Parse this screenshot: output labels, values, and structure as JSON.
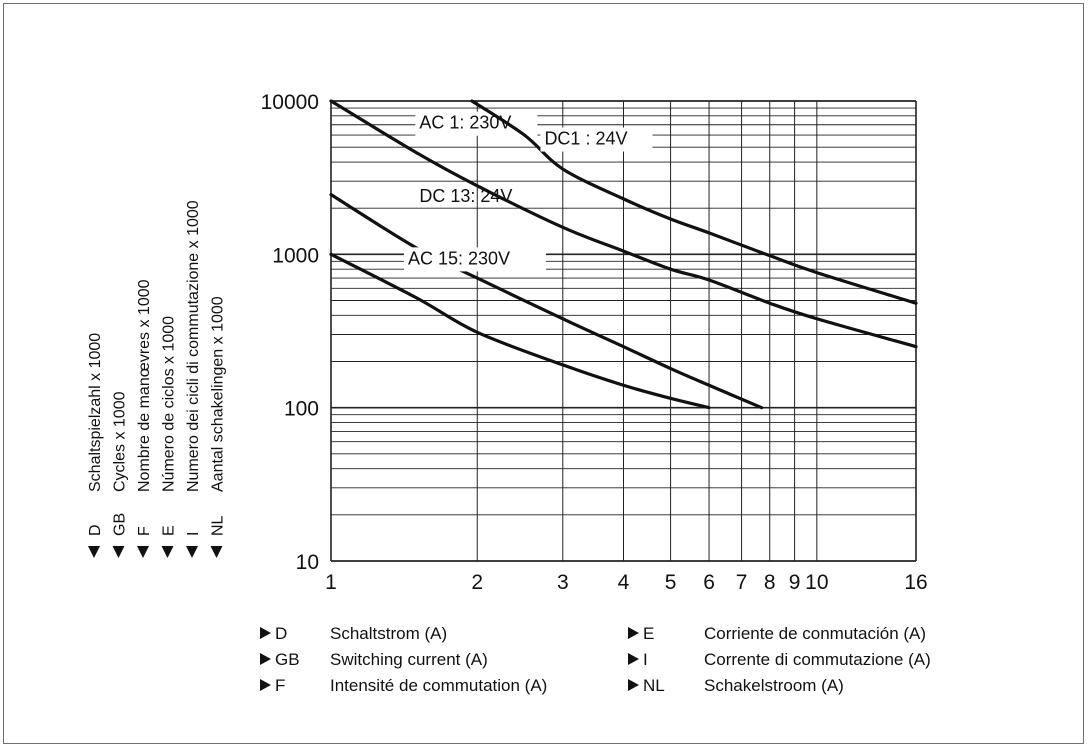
{
  "chart_data": {
    "type": "line",
    "x_scale": "log",
    "y_scale": "log",
    "xlim": [
      1,
      16
    ],
    "ylim": [
      10,
      10000
    ],
    "x_ticks": [
      "1",
      "2",
      "3",
      "4",
      "5",
      "6",
      "7",
      "8",
      "9",
      "10",
      "16"
    ],
    "y_ticks": [
      "10",
      "100",
      "1000",
      "10000"
    ],
    "grid": true,
    "series": [
      {
        "name": "AC 1: 230V",
        "points": [
          [
            1,
            10000
          ],
          [
            1.5,
            4600
          ],
          [
            2,
            2800
          ],
          [
            3,
            1500
          ],
          [
            4,
            1050
          ],
          [
            5,
            800
          ],
          [
            6,
            680
          ],
          [
            8,
            480
          ],
          [
            10,
            380
          ],
          [
            16,
            250
          ]
        ]
      },
      {
        "name": "DC1 : 24V",
        "points": [
          [
            1.95,
            10000
          ],
          [
            2.5,
            6000
          ],
          [
            3,
            3600
          ],
          [
            4,
            2300
          ],
          [
            5,
            1700
          ],
          [
            6,
            1380
          ],
          [
            8,
            980
          ],
          [
            10,
            760
          ],
          [
            16,
            480
          ]
        ]
      },
      {
        "name": "DC 13: 24V",
        "points": [
          [
            1,
            2450
          ],
          [
            1.5,
            1100
          ],
          [
            2,
            700
          ],
          [
            3,
            380
          ],
          [
            4,
            250
          ],
          [
            5,
            180
          ],
          [
            6,
            140
          ],
          [
            7.7,
            100
          ]
        ]
      },
      {
        "name": "AC 15: 230V",
        "points": [
          [
            1,
            1000
          ],
          [
            1.5,
            520
          ],
          [
            2,
            310
          ],
          [
            3,
            190
          ],
          [
            4,
            140
          ],
          [
            5,
            115
          ],
          [
            6,
            100
          ]
        ]
      }
    ],
    "y_axis_labels": [
      {
        "code": "D",
        "text": "Schaltspielzahl x 1000"
      },
      {
        "code": "GB",
        "text": "Cycles x 1000"
      },
      {
        "code": "F",
        "text": "Nombre de manœvres x 1000"
      },
      {
        "code": "E",
        "text": "Número de ciclos x 1000"
      },
      {
        "code": "I",
        "text": "Numero dei cicli di commutazione x 1000"
      },
      {
        "code": "NL",
        "text": "Aantal schakelingen x 1000"
      }
    ],
    "x_axis_labels": [
      {
        "code": "D",
        "text": "Schaltstrom (A)"
      },
      {
        "code": "GB",
        "text": "Switching current (A)"
      },
      {
        "code": "F",
        "text": "Intensité de commutation (A)"
      },
      {
        "code": "E",
        "text": "Corriente de conmutación (A)"
      },
      {
        "code": "I",
        "text": "Corrente di commutazione (A)"
      },
      {
        "code": "NL",
        "text": "Schakelstroom (A)"
      }
    ]
  }
}
